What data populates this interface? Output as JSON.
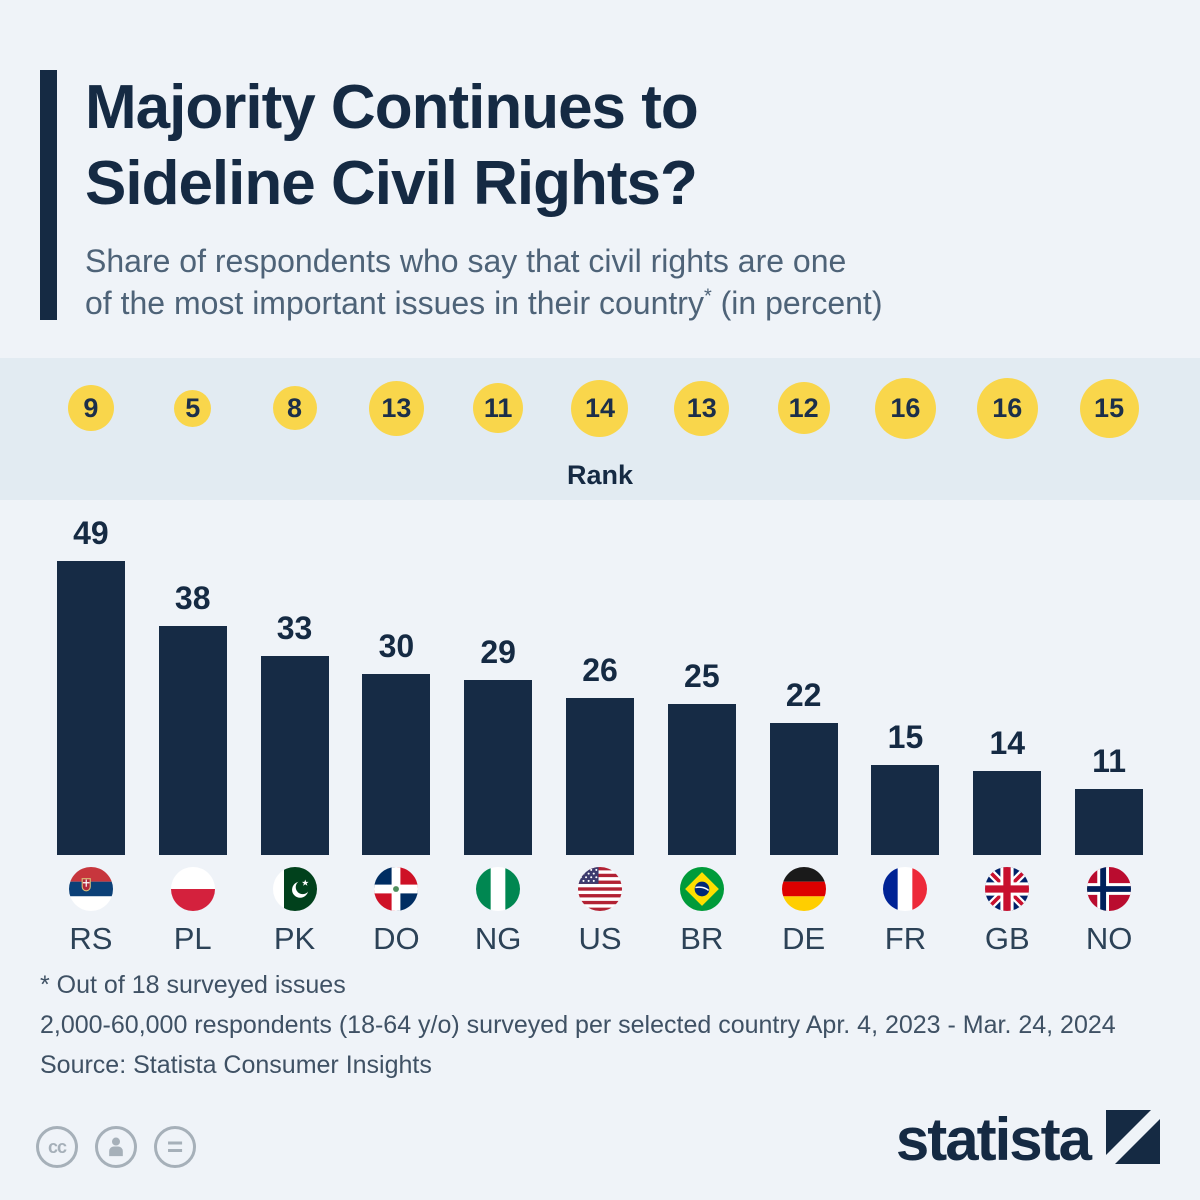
{
  "accent_color": "#152a43",
  "rank_circle_color": "#f9d64b",
  "header": {
    "title_line1": "Majority Continues to",
    "title_line2": "Sideline Civil Rights?",
    "subtitle_line1": "Share of respondents who say that civil rights are one",
    "subtitle_line2": "of the most important issues in their country",
    "footnote_marker": "*",
    "subtitle_suffix": "(in percent)"
  },
  "rank_band": {
    "label": "Rank"
  },
  "chart_data": {
    "type": "bar",
    "title": "Majority Continues to Sideline Civil Rights?",
    "subtitle": "Share of respondents who say that civil rights are one of the most important issues in their country* (in percent)",
    "categories": [
      "RS",
      "PL",
      "PK",
      "DO",
      "NG",
      "US",
      "BR",
      "DE",
      "FR",
      "GB",
      "NO"
    ],
    "values": [
      49,
      38,
      33,
      30,
      29,
      26,
      25,
      22,
      15,
      14,
      11
    ],
    "ranks": [
      9,
      5,
      8,
      13,
      11,
      14,
      13,
      12,
      16,
      16,
      15
    ],
    "rank_axis_label": "Rank",
    "ylim": [
      0,
      49
    ],
    "bar_color": "#162b45",
    "grid": false,
    "legend": false
  },
  "footnotes": {
    "line1": "* Out of 18 surveyed issues",
    "line2": "2,000-60,000 respondents (18-64 y/o) surveyed per selected country Apr. 4, 2023 - Mar. 24, 2024",
    "line3": "Source: Statista Consumer Insights"
  },
  "footer": {
    "license_icons": [
      "cc-icon",
      "attribution-person-icon",
      "equals-icon"
    ],
    "brand": "statista"
  }
}
